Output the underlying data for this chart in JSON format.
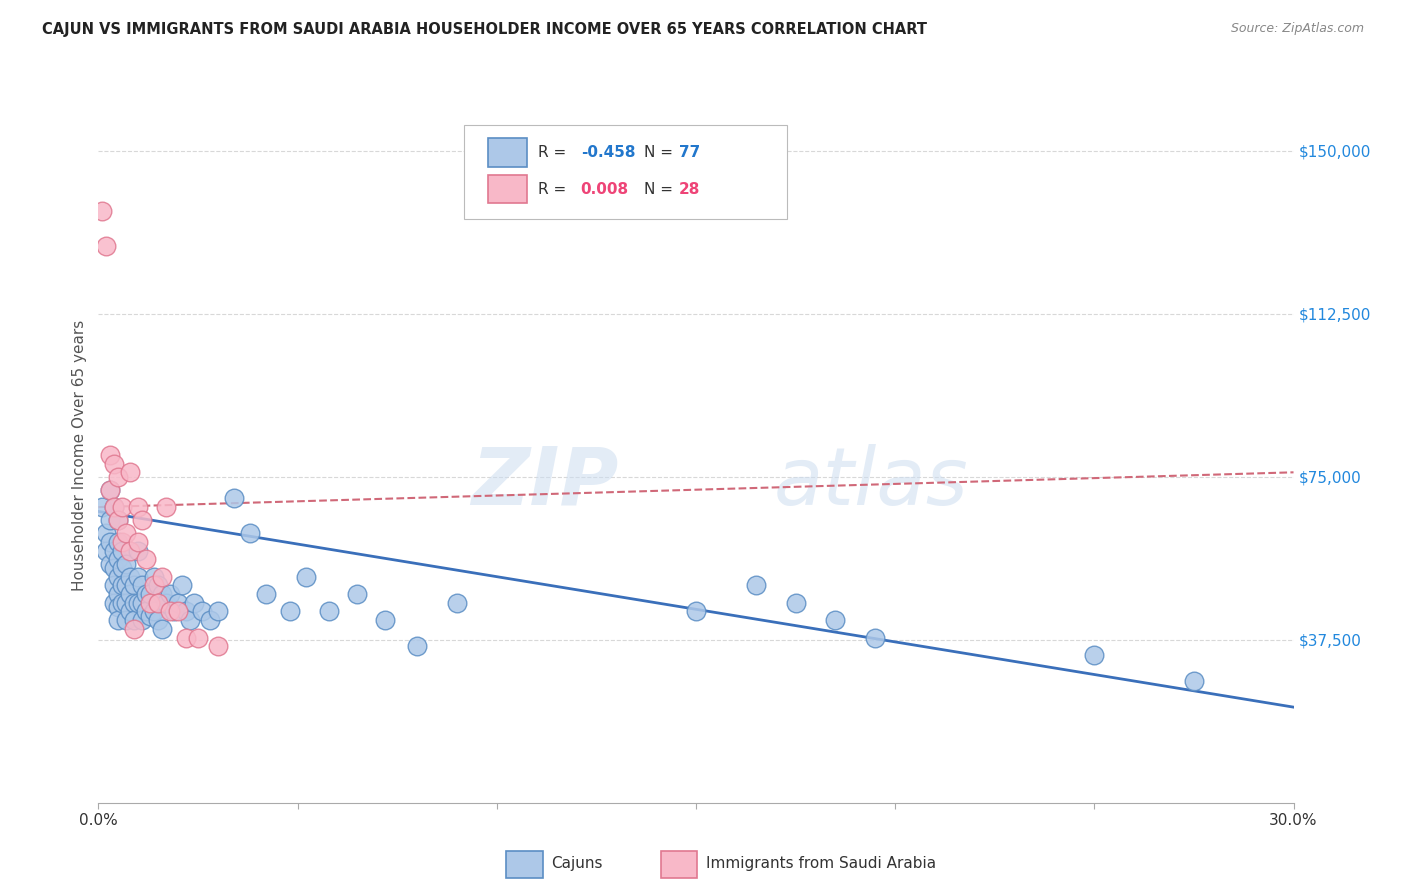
{
  "title": "CAJUN VS IMMIGRANTS FROM SAUDI ARABIA HOUSEHOLDER INCOME OVER 65 YEARS CORRELATION CHART",
  "source": "Source: ZipAtlas.com",
  "ylabel": "Householder Income Over 65 years",
  "yticks": [
    0,
    37500,
    75000,
    112500,
    150000
  ],
  "ytick_labels": [
    "",
    "$37,500",
    "$75,000",
    "$112,500",
    "$150,000"
  ],
  "xlim": [
    0.0,
    0.3
  ],
  "ylim": [
    0,
    160000
  ],
  "watermark_zip": "ZIP",
  "watermark_atlas": "atlas",
  "legend_cajun_R": "-0.458",
  "legend_cajun_N": "77",
  "legend_saudi_R": "0.008",
  "legend_saudi_N": "28",
  "cajun_color": "#adc8e8",
  "cajun_edge_color": "#5b8ec4",
  "cajun_line_color": "#3a6fba",
  "saudi_color": "#f8b8c8",
  "saudi_edge_color": "#e07890",
  "saudi_line_color": "#d06878",
  "cajun_scatter_x": [
    0.001,
    0.002,
    0.002,
    0.003,
    0.003,
    0.003,
    0.003,
    0.004,
    0.004,
    0.004,
    0.004,
    0.004,
    0.005,
    0.005,
    0.005,
    0.005,
    0.005,
    0.005,
    0.005,
    0.006,
    0.006,
    0.006,
    0.006,
    0.007,
    0.007,
    0.007,
    0.007,
    0.008,
    0.008,
    0.008,
    0.009,
    0.009,
    0.009,
    0.01,
    0.01,
    0.01,
    0.011,
    0.011,
    0.011,
    0.012,
    0.012,
    0.013,
    0.013,
    0.014,
    0.014,
    0.015,
    0.015,
    0.016,
    0.016,
    0.017,
    0.018,
    0.019,
    0.02,
    0.021,
    0.022,
    0.023,
    0.024,
    0.026,
    0.028,
    0.03,
    0.034,
    0.038,
    0.042,
    0.048,
    0.052,
    0.058,
    0.065,
    0.072,
    0.08,
    0.09,
    0.15,
    0.165,
    0.175,
    0.185,
    0.195,
    0.25,
    0.275
  ],
  "cajun_scatter_y": [
    68000,
    62000,
    58000,
    72000,
    65000,
    60000,
    55000,
    68000,
    58000,
    54000,
    50000,
    46000,
    65000,
    60000,
    56000,
    52000,
    48000,
    45000,
    42000,
    58000,
    54000,
    50000,
    46000,
    55000,
    50000,
    46000,
    42000,
    52000,
    48000,
    44000,
    50000,
    46000,
    42000,
    58000,
    52000,
    46000,
    50000,
    46000,
    42000,
    48000,
    44000,
    48000,
    43000,
    52000,
    44000,
    50000,
    42000,
    48000,
    40000,
    46000,
    48000,
    44000,
    46000,
    50000,
    44000,
    42000,
    46000,
    44000,
    42000,
    44000,
    70000,
    62000,
    48000,
    44000,
    52000,
    44000,
    48000,
    42000,
    36000,
    46000,
    44000,
    50000,
    46000,
    42000,
    38000,
    34000,
    28000
  ],
  "saudi_scatter_x": [
    0.001,
    0.002,
    0.003,
    0.003,
    0.004,
    0.004,
    0.005,
    0.005,
    0.006,
    0.006,
    0.007,
    0.008,
    0.008,
    0.009,
    0.01,
    0.01,
    0.011,
    0.012,
    0.013,
    0.014,
    0.015,
    0.016,
    0.017,
    0.018,
    0.02,
    0.022,
    0.025,
    0.03
  ],
  "saudi_scatter_y": [
    136000,
    128000,
    80000,
    72000,
    78000,
    68000,
    75000,
    65000,
    68000,
    60000,
    62000,
    76000,
    58000,
    40000,
    68000,
    60000,
    65000,
    56000,
    46000,
    50000,
    46000,
    52000,
    68000,
    44000,
    44000,
    38000,
    38000,
    36000
  ],
  "cajun_trend_x": [
    0.0,
    0.3
  ],
  "cajun_trend_y": [
    67000,
    22000
  ],
  "saudi_trend_x": [
    0.0,
    0.3
  ],
  "saudi_trend_y": [
    68000,
    76000
  ],
  "xtick_positions": [
    0.0,
    0.05,
    0.1,
    0.15,
    0.2,
    0.25,
    0.3
  ],
  "grid_color": "#d8d8d8",
  "background_color": "#ffffff"
}
